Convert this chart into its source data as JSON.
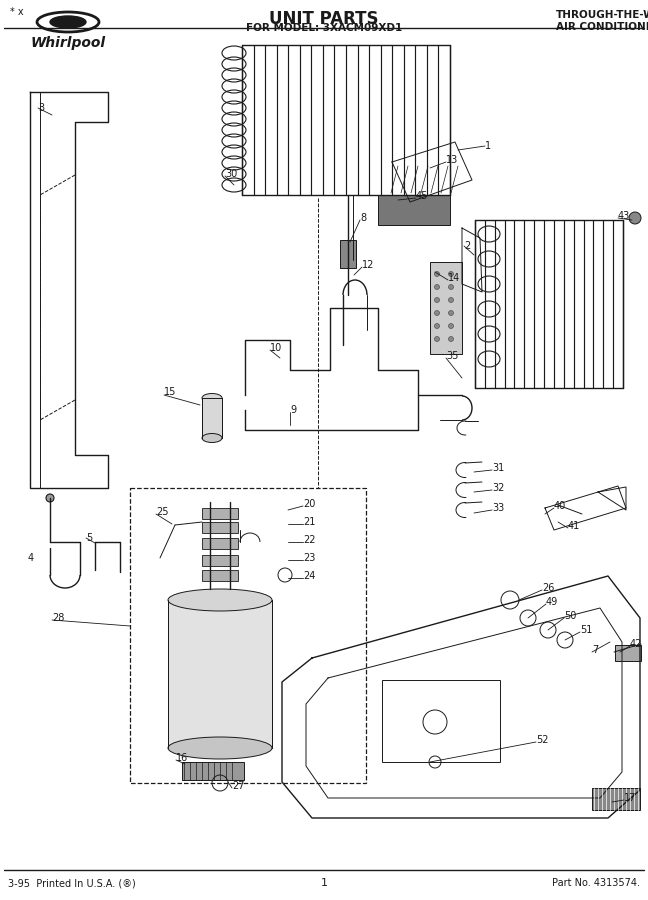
{
  "title": "UNIT PARTS",
  "subtitle": "FOR MODEL: 3XACM09XD1",
  "top_right_line1": "THROUGH-THE-WALL",
  "top_right_line2": "AIR CONDITIONER",
  "bottom_left": "3-95  Printed In U.S.A. (®)",
  "bottom_center": "1",
  "bottom_right": "Part No. 4313574.",
  "brand": "Whirlpool",
  "bg_color": "#ffffff",
  "line_color": "#1a1a1a",
  "fig_width": 6.48,
  "fig_height": 9.0,
  "dpi": 100,
  "corner_mark": "* x"
}
